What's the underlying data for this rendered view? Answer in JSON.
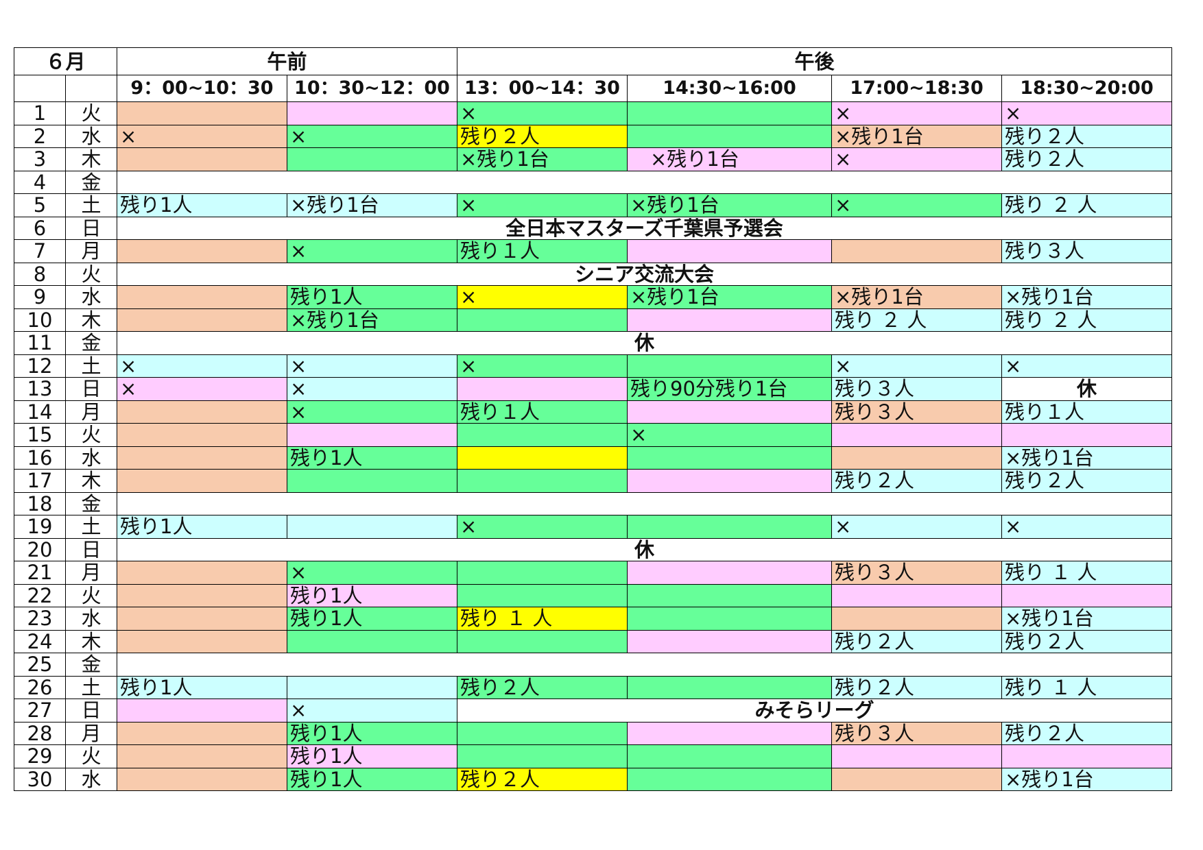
{
  "month_label": "６月",
  "am_label": "午前",
  "pm_label": "午後",
  "slots": [
    "9：00~10：30",
    "10：30~12：00",
    "13：00~14：30",
    "14:30~16:00",
    "17:00~18:30",
    "18:30~20:00"
  ],
  "colors": {
    "orange": "#f8cbad",
    "pink": "#ffccff",
    "green": "#66ff99",
    "cyan": "#ccffff",
    "yellow": "#ffff00",
    "red_text": "#e8141e"
  },
  "rows": [
    {
      "d": "1",
      "w": "火",
      "c": [
        [
          "o",
          ""
        ],
        [
          "p",
          ""
        ],
        [
          "g",
          "×"
        ],
        [
          "g",
          ""
        ],
        [
          "p",
          "×"
        ],
        [
          "p",
          "×"
        ]
      ]
    },
    {
      "d": "2",
      "w": "水",
      "c": [
        [
          "o",
          "×"
        ],
        [
          "g",
          "×"
        ],
        [
          "y",
          "残り２人"
        ],
        [
          "g",
          ""
        ],
        [
          "o",
          "×残り1台"
        ],
        [
          "c",
          "残り２人"
        ]
      ]
    },
    {
      "d": "3",
      "w": "木",
      "c": [
        [
          "o",
          ""
        ],
        [
          "g",
          ""
        ],
        [
          "g",
          "×残り1台"
        ],
        [
          "p",
          "　×残り1台"
        ],
        [
          "p",
          "×"
        ],
        [
          "c",
          "残り２人"
        ]
      ]
    },
    {
      "d": "4",
      "w": "金",
      "banner": ""
    },
    {
      "d": "5",
      "w": "土",
      "c": [
        [
          "c",
          "残り1人"
        ],
        [
          "c",
          "×残り1台"
        ],
        [
          "g",
          "×"
        ],
        [
          "g",
          "×残り1台"
        ],
        [
          "g",
          "×"
        ],
        [
          "c",
          "残り ２ 人"
        ]
      ]
    },
    {
      "d": "6",
      "w": "日",
      "red": true,
      "banner": "全日本マスターズ千葉県予選会"
    },
    {
      "d": "7",
      "w": "月",
      "c": [
        [
          "o",
          ""
        ],
        [
          "g",
          "×"
        ],
        [
          "g",
          "残り１人"
        ],
        [
          "p",
          ""
        ],
        [
          "o",
          ""
        ],
        [
          "c",
          "残り３人"
        ]
      ]
    },
    {
      "d": "8",
      "w": "火",
      "banner": "シニア交流大会"
    },
    {
      "d": "9",
      "w": "水",
      "c": [
        [
          "o",
          ""
        ],
        [
          "g",
          "残り1人"
        ],
        [
          "y",
          "×"
        ],
        [
          "g",
          "×残り1台"
        ],
        [
          "o",
          "×残り1台"
        ],
        [
          "c",
          "×残り1台"
        ]
      ]
    },
    {
      "d": "10",
      "w": "木",
      "c": [
        [
          "o",
          ""
        ],
        [
          "g",
          "×残り1台"
        ],
        [
          "g",
          ""
        ],
        [
          "p",
          ""
        ],
        [
          "c",
          "残り ２ 人"
        ],
        [
          "c",
          "残り ２ 人"
        ]
      ]
    },
    {
      "d": "11",
      "w": "金",
      "banner": "休"
    },
    {
      "d": "12",
      "w": "土",
      "c": [
        [
          "c",
          "×"
        ],
        [
          "c",
          "×"
        ],
        [
          "g",
          "×"
        ],
        [
          "g",
          ""
        ],
        [
          "c",
          "×"
        ],
        [
          "c",
          "×"
        ]
      ]
    },
    {
      "d": "13",
      "w": "日",
      "red": true,
      "c": [
        [
          "p",
          "×"
        ],
        [
          "c",
          "×"
        ],
        [
          "p",
          ""
        ],
        [
          "g",
          "残り90分残り1台"
        ],
        [
          "c",
          "残り３人"
        ],
        [
          "w",
          "休"
        ]
      ]
    },
    {
      "d": "14",
      "w": "月",
      "c": [
        [
          "o",
          ""
        ],
        [
          "g",
          "×"
        ],
        [
          "g",
          "残り１人"
        ],
        [
          "p",
          ""
        ],
        [
          "o",
          "残り３人"
        ],
        [
          "c",
          "残り１人"
        ]
      ]
    },
    {
      "d": "15",
      "w": "火",
      "c": [
        [
          "o",
          ""
        ],
        [
          "p",
          ""
        ],
        [
          "g",
          ""
        ],
        [
          "g",
          "×"
        ],
        [
          "p",
          ""
        ],
        [
          "p",
          ""
        ]
      ]
    },
    {
      "d": "16",
      "w": "水",
      "c": [
        [
          "o",
          ""
        ],
        [
          "g",
          "残り1人"
        ],
        [
          "y",
          ""
        ],
        [
          "g",
          ""
        ],
        [
          "o",
          ""
        ],
        [
          "c",
          "×残り1台"
        ]
      ]
    },
    {
      "d": "17",
      "w": "木",
      "c": [
        [
          "o",
          ""
        ],
        [
          "g",
          ""
        ],
        [
          "g",
          ""
        ],
        [
          "p",
          ""
        ],
        [
          "c",
          "残り２人"
        ],
        [
          "c",
          "残り２人"
        ]
      ]
    },
    {
      "d": "18",
      "w": "金",
      "banner": ""
    },
    {
      "d": "19",
      "w": "土",
      "c": [
        [
          "c",
          "残り1人"
        ],
        [
          "c",
          ""
        ],
        [
          "g",
          "×"
        ],
        [
          "g",
          ""
        ],
        [
          "c",
          "×"
        ],
        [
          "c",
          "×"
        ]
      ]
    },
    {
      "d": "20",
      "w": "日",
      "red": true,
      "banner": "休"
    },
    {
      "d": "21",
      "w": "月",
      "c": [
        [
          "o",
          ""
        ],
        [
          "g",
          "×"
        ],
        [
          "g",
          ""
        ],
        [
          "p",
          ""
        ],
        [
          "o",
          "残り３人"
        ],
        [
          "c",
          "残り １ 人"
        ]
      ]
    },
    {
      "d": "22",
      "w": "火",
      "c": [
        [
          "o",
          ""
        ],
        [
          "p",
          "残り1人"
        ],
        [
          "g",
          ""
        ],
        [
          "g",
          ""
        ],
        [
          "p",
          ""
        ],
        [
          "p",
          ""
        ]
      ]
    },
    {
      "d": "23",
      "w": "水",
      "c": [
        [
          "o",
          ""
        ],
        [
          "g",
          "残り1人"
        ],
        [
          "y",
          "残り １ 人"
        ],
        [
          "g",
          ""
        ],
        [
          "o",
          ""
        ],
        [
          "c",
          "×残り1台"
        ]
      ]
    },
    {
      "d": "24",
      "w": "木",
      "c": [
        [
          "o",
          ""
        ],
        [
          "g",
          ""
        ],
        [
          "g",
          ""
        ],
        [
          "p",
          ""
        ],
        [
          "c",
          "残り２人"
        ],
        [
          "c",
          "残り２人"
        ]
      ]
    },
    {
      "d": "25",
      "w": "金",
      "banner": ""
    },
    {
      "d": "26",
      "w": "土",
      "c": [
        [
          "c",
          "残り1人"
        ],
        [
          "c",
          ""
        ],
        [
          "g",
          "残り２人"
        ],
        [
          "g",
          ""
        ],
        [
          "c",
          "残り２人"
        ],
        [
          "c",
          "残り １ 人"
        ]
      ]
    },
    {
      "d": "27",
      "w": "日",
      "red": true,
      "c": [
        [
          "p",
          ""
        ],
        [
          "c",
          "×"
        ]
      ],
      "pm_banner": "みそらリーグ"
    },
    {
      "d": "28",
      "w": "月",
      "c": [
        [
          "o",
          ""
        ],
        [
          "g",
          "残り1人"
        ],
        [
          "g",
          ""
        ],
        [
          "p",
          ""
        ],
        [
          "o",
          "残り３人"
        ],
        [
          "c",
          "残り２人"
        ]
      ]
    },
    {
      "d": "29",
      "w": "火",
      "c": [
        [
          "o",
          ""
        ],
        [
          "p",
          "残り1人"
        ],
        [
          "g",
          ""
        ],
        [
          "g",
          ""
        ],
        [
          "p",
          ""
        ],
        [
          "p",
          ""
        ]
      ]
    },
    {
      "d": "30",
      "w": "水",
      "c": [
        [
          "o",
          ""
        ],
        [
          "g",
          "残り1人"
        ],
        [
          "y",
          "残り２人"
        ],
        [
          "g",
          ""
        ],
        [
          "o",
          ""
        ],
        [
          "c",
          "×残り1台"
        ]
      ]
    }
  ]
}
